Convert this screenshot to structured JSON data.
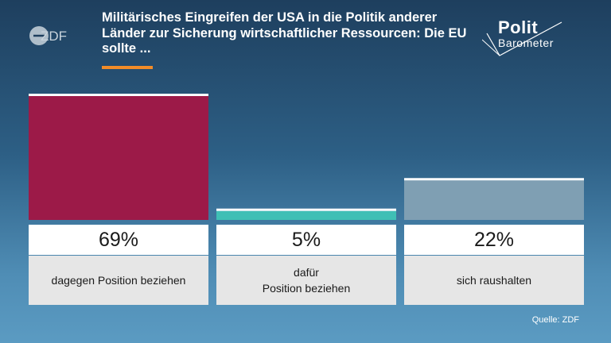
{
  "header": {
    "title": "Militärisches Eingreifen der USA in die Politik anderer Länder zur Sicherung wirtschaftlicher Ressourcen: Die EU sollte ...",
    "broadcaster_logo": "ZDF",
    "programme_logo_line1": "Polit",
    "programme_logo_line2": "Barometer",
    "accent_color": "#f28c28"
  },
  "chart_data": {
    "type": "bar",
    "title": "Militärisches Eingreifen der USA in die Politik anderer Länder zur Sicherung wirtschaftlicher Ressourcen: Die EU sollte ...",
    "categories": [
      "dagegen Position beziehen",
      "dafür\nPosition beziehen",
      "sich raushalten"
    ],
    "values": [
      69,
      5,
      22
    ],
    "value_labels": [
      "69%",
      "5%",
      "22%"
    ],
    "unit": "%",
    "colors": [
      "#9c1a48",
      "#3fbfb5",
      "#7f9fb3"
    ],
    "ylim": [
      0,
      69
    ],
    "grid": false,
    "legend": "none"
  },
  "footer": {
    "source": "Quelle: ZDF"
  }
}
